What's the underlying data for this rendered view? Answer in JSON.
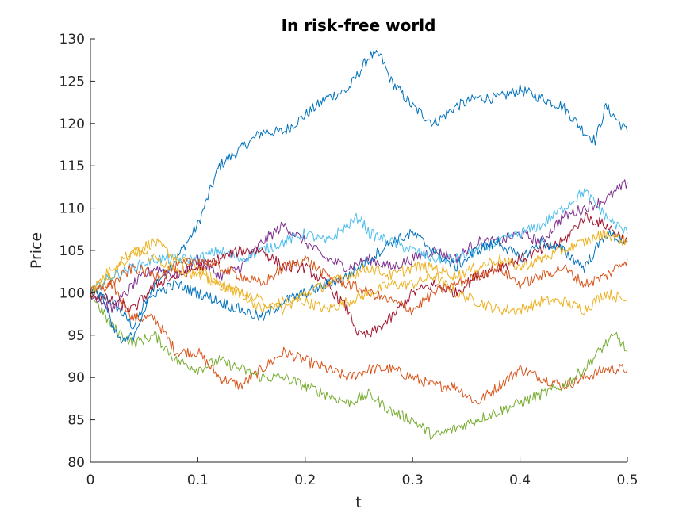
{
  "chart_data": {
    "type": "line",
    "title": "In risk-free world",
    "xlabel": "t",
    "ylabel": "Price",
    "xlim": [
      0,
      0.5
    ],
    "ylim": [
      80,
      130
    ],
    "xticks": [
      0,
      0.1,
      0.2,
      0.3,
      0.4,
      0.5
    ],
    "xtick_labels": [
      "0",
      "0.1",
      "0.2",
      "0.3",
      "0.4",
      "0.5"
    ],
    "yticks": [
      80,
      85,
      90,
      95,
      100,
      105,
      110,
      115,
      120,
      125,
      130
    ],
    "ytick_labels": [
      "80",
      "85",
      "90",
      "95",
      "100",
      "105",
      "110",
      "115",
      "120",
      "125",
      "130"
    ],
    "grid": false,
    "series": [
      {
        "color": "#0072BD",
        "x": [
          0,
          0.02,
          0.04,
          0.06,
          0.08,
          0.1,
          0.12,
          0.14,
          0.16,
          0.18,
          0.2,
          0.22,
          0.24,
          0.26,
          0.27,
          0.28,
          0.3,
          0.32,
          0.34,
          0.36,
          0.38,
          0.4,
          0.42,
          0.44,
          0.46,
          0.47,
          0.48,
          0.5
        ],
        "y": [
          100,
          99,
          96,
          101,
          104,
          108,
          115,
          117,
          119,
          119,
          121,
          123,
          124,
          128,
          128,
          125,
          122,
          120,
          122,
          123,
          123,
          124,
          123,
          122,
          119,
          118,
          122,
          119
        ]
      },
      {
        "color": "#D95319",
        "x": [
          0,
          0.02,
          0.04,
          0.06,
          0.08,
          0.1,
          0.12,
          0.14,
          0.16,
          0.18,
          0.2,
          0.22,
          0.24,
          0.26,
          0.28,
          0.3,
          0.32,
          0.34,
          0.36,
          0.38,
          0.4,
          0.42,
          0.44,
          0.46,
          0.48,
          0.5
        ],
        "y": [
          100,
          101,
          97,
          97,
          93,
          93,
          90,
          89,
          91,
          93,
          92,
          91,
          90,
          91,
          91,
          90,
          89,
          89,
          87,
          89,
          91,
          90,
          89,
          90,
          91,
          91
        ]
      },
      {
        "color": "#EDB120",
        "x": [
          0,
          0.02,
          0.04,
          0.06,
          0.08,
          0.1,
          0.12,
          0.14,
          0.16,
          0.18,
          0.2,
          0.22,
          0.24,
          0.26,
          0.28,
          0.3,
          0.32,
          0.34,
          0.36,
          0.38,
          0.4,
          0.42,
          0.44,
          0.46,
          0.48,
          0.5
        ],
        "y": [
          100,
          102,
          105,
          106,
          104,
          103,
          101,
          100,
          98,
          99,
          99,
          98,
          99,
          100,
          101,
          101,
          102,
          100,
          99,
          98,
          98,
          99,
          99,
          98,
          100,
          99
        ]
      },
      {
        "color": "#7E2F8E",
        "x": [
          0,
          0.02,
          0.04,
          0.06,
          0.08,
          0.1,
          0.12,
          0.14,
          0.16,
          0.18,
          0.2,
          0.22,
          0.24,
          0.26,
          0.28,
          0.3,
          0.32,
          0.34,
          0.36,
          0.38,
          0.4,
          0.42,
          0.44,
          0.46,
          0.48,
          0.5
        ],
        "y": [
          100,
          98,
          101,
          103,
          102,
          104,
          102,
          103,
          106,
          108,
          106,
          104,
          103,
          104,
          103,
          104,
          105,
          104,
          106,
          106,
          107,
          106,
          109,
          110,
          111,
          113
        ]
      },
      {
        "color": "#77AC30",
        "x": [
          0,
          0.02,
          0.04,
          0.06,
          0.08,
          0.1,
          0.12,
          0.14,
          0.16,
          0.18,
          0.2,
          0.22,
          0.24,
          0.26,
          0.28,
          0.3,
          0.32,
          0.34,
          0.36,
          0.38,
          0.4,
          0.42,
          0.44,
          0.46,
          0.48,
          0.49,
          0.5
        ],
        "y": [
          100,
          96,
          94,
          95,
          92,
          91,
          92,
          91,
          90,
          90,
          89,
          88,
          87,
          88,
          86,
          85,
          83,
          84,
          85,
          86,
          87,
          88,
          89,
          91,
          94,
          95,
          93
        ]
      },
      {
        "color": "#4DBEEE",
        "x": [
          0,
          0.02,
          0.04,
          0.06,
          0.08,
          0.1,
          0.12,
          0.14,
          0.16,
          0.18,
          0.2,
          0.22,
          0.24,
          0.25,
          0.26,
          0.28,
          0.3,
          0.32,
          0.34,
          0.36,
          0.38,
          0.4,
          0.42,
          0.44,
          0.46,
          0.48,
          0.5
        ],
        "y": [
          100,
          102,
          103,
          104,
          104,
          104,
          105,
          104,
          105,
          106,
          107,
          106,
          108,
          109,
          107,
          106,
          105,
          104,
          104,
          105,
          106,
          107,
          108,
          110,
          112,
          109,
          107
        ]
      },
      {
        "color": "#A2142F",
        "x": [
          0,
          0.02,
          0.04,
          0.06,
          0.08,
          0.1,
          0.12,
          0.14,
          0.16,
          0.18,
          0.2,
          0.22,
          0.24,
          0.25,
          0.26,
          0.27,
          0.28,
          0.3,
          0.32,
          0.34,
          0.36,
          0.38,
          0.4,
          0.42,
          0.44,
          0.46,
          0.48,
          0.5
        ],
        "y": [
          100,
          99,
          98,
          101,
          102,
          103,
          104,
          105,
          105,
          103,
          103,
          101,
          98,
          95,
          95,
          96,
          97,
          100,
          101,
          100,
          102,
          103,
          104,
          105,
          106,
          109,
          108,
          106
        ]
      },
      {
        "color": "#0072BD",
        "x": [
          0,
          0.01,
          0.02,
          0.03,
          0.04,
          0.05,
          0.06,
          0.08,
          0.1,
          0.12,
          0.14,
          0.16,
          0.18,
          0.2,
          0.22,
          0.24,
          0.26,
          0.28,
          0.3,
          0.32,
          0.34,
          0.36,
          0.38,
          0.4,
          0.42,
          0.44,
          0.46,
          0.48,
          0.5
        ],
        "y": [
          100,
          100,
          96,
          94,
          95,
          98,
          100,
          101,
          100,
          99,
          98,
          97,
          99,
          100,
          101,
          102,
          104,
          106,
          107,
          105,
          103,
          105,
          106,
          104,
          106,
          105,
          103,
          107,
          106
        ]
      },
      {
        "color": "#D95319",
        "x": [
          0,
          0.02,
          0.04,
          0.06,
          0.08,
          0.1,
          0.12,
          0.14,
          0.16,
          0.18,
          0.2,
          0.22,
          0.24,
          0.26,
          0.28,
          0.3,
          0.32,
          0.34,
          0.36,
          0.38,
          0.4,
          0.42,
          0.44,
          0.46,
          0.48,
          0.5
        ],
        "y": [
          100,
          101,
          103,
          102,
          103,
          104,
          103,
          102,
          101,
          103,
          104,
          102,
          101,
          100,
          99,
          98,
          100,
          101,
          102,
          103,
          101,
          102,
          103,
          101,
          102,
          104
        ]
      },
      {
        "color": "#EDB120",
        "x": [
          0,
          0.02,
          0.04,
          0.06,
          0.08,
          0.1,
          0.12,
          0.14,
          0.16,
          0.18,
          0.2,
          0.22,
          0.24,
          0.26,
          0.28,
          0.3,
          0.32,
          0.34,
          0.36,
          0.38,
          0.4,
          0.42,
          0.44,
          0.46,
          0.48,
          0.5
        ],
        "y": [
          100,
          103,
          105,
          104,
          103,
          102,
          101,
          100,
          99,
          98,
          100,
          101,
          102,
          103,
          102,
          103,
          103,
          102,
          103,
          104,
          103,
          104,
          105,
          106,
          107,
          106
        ]
      }
    ]
  }
}
